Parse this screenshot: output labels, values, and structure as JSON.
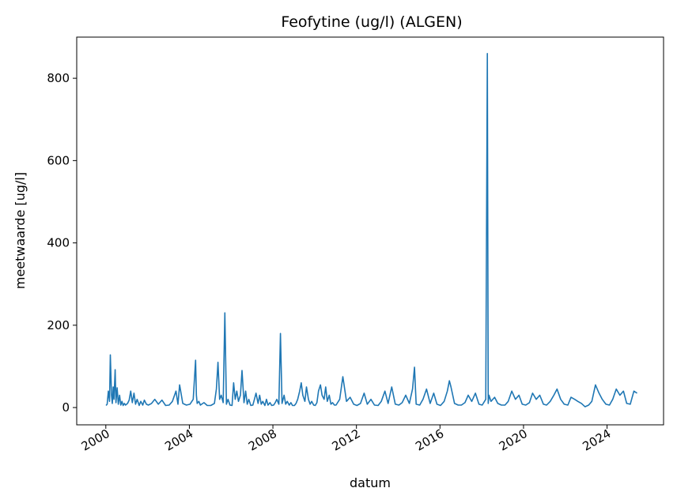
{
  "chart_data": {
    "type": "line",
    "title": "Feofytine (ug/l) (ALGEN)",
    "xlabel": "datum",
    "ylabel": "meetwaarde [ug/l]",
    "xlim": [
      "1998-08-10",
      "2026-09-15"
    ],
    "ylim": [
      -42,
      900
    ],
    "x_ticks": [
      "2000",
      "2004",
      "2008",
      "2012",
      "2016",
      "2020",
      "2024"
    ],
    "y_ticks": [
      0,
      200,
      400,
      600,
      800
    ],
    "grid": false,
    "legend": "none",
    "colors": {
      "line": "#1f77b4",
      "axes": "#000000",
      "background": "#ffffff"
    },
    "series": [
      {
        "x": [
          "2000-01-05",
          "2000-01-25",
          "2000-02-14",
          "2000-03-06",
          "2000-03-20",
          "2000-04-10",
          "2000-04-24",
          "2000-05-08",
          "2000-05-22",
          "2000-06-12",
          "2000-06-26",
          "2000-07-17",
          "2000-08-07",
          "2000-08-28",
          "2000-09-18",
          "2000-10-09",
          "2000-10-30",
          "2000-11-20",
          "2000-12-11",
          "2001-01-15",
          "2001-02-12",
          "2001-03-12",
          "2001-04-09",
          "2001-05-07",
          "2001-06-04",
          "2001-07-02",
          "2001-08-06",
          "2001-09-03",
          "2001-10-08",
          "2001-11-05",
          "2001-12-10",
          "2002-01-14",
          "2002-03-11",
          "2002-05-06",
          "2002-07-08",
          "2002-09-09",
          "2002-11-11",
          "2003-01-13",
          "2003-03-10",
          "2003-05-12",
          "2003-06-16",
          "2003-07-14",
          "2003-09-08",
          "2003-11-10",
          "2004-01-12",
          "2004-03-08",
          "2004-04-19",
          "2004-05-03",
          "2004-05-17",
          "2004-06-14",
          "2004-07-12",
          "2004-09-13",
          "2004-11-08",
          "2005-01-10",
          "2005-03-14",
          "2005-04-18",
          "2005-05-16",
          "2005-06-13",
          "2005-07-11",
          "2005-08-15",
          "2005-09-12",
          "2005-10-10",
          "2005-11-07",
          "2005-12-12",
          "2006-01-16",
          "2006-02-13",
          "2006-03-13",
          "2006-04-10",
          "2006-05-08",
          "2006-06-12",
          "2006-07-10",
          "2006-08-14",
          "2006-09-11",
          "2006-10-09",
          "2006-11-06",
          "2006-12-11",
          "2007-01-15",
          "2007-02-12",
          "2007-03-12",
          "2007-04-16",
          "2007-05-14",
          "2007-06-11",
          "2007-07-09",
          "2007-08-13",
          "2007-09-10",
          "2007-10-08",
          "2007-11-12",
          "2007-12-10",
          "2008-01-14",
          "2008-02-11",
          "2008-03-10",
          "2008-04-14",
          "2008-05-12",
          "2008-06-09",
          "2008-07-14",
          "2008-08-11",
          "2008-09-08",
          "2008-10-13",
          "2008-11-10",
          "2008-12-08",
          "2009-01-12",
          "2009-02-09",
          "2009-03-09",
          "2009-04-13",
          "2009-05-11",
          "2009-06-08",
          "2009-07-13",
          "2009-08-10",
          "2009-09-14",
          "2009-10-12",
          "2009-11-09",
          "2009-12-14",
          "2010-01-11",
          "2010-02-08",
          "2010-03-08",
          "2010-04-12",
          "2010-05-10",
          "2010-06-14",
          "2010-07-12",
          "2010-08-09",
          "2010-09-13",
          "2010-10-11",
          "2010-11-08",
          "2010-12-13",
          "2011-01-10",
          "2011-03-14",
          "2011-05-09",
          "2011-07-11",
          "2011-09-12",
          "2011-11-14",
          "2012-01-09",
          "2012-03-12",
          "2012-05-14",
          "2012-07-09",
          "2012-09-10",
          "2012-11-12",
          "2013-01-14",
          "2013-03-11",
          "2013-05-13",
          "2013-07-08",
          "2013-09-09",
          "2013-11-11",
          "2014-01-13",
          "2014-03-10",
          "2014-05-12",
          "2014-07-14",
          "2014-09-08",
          "2014-10-13",
          "2014-11-10",
          "2015-01-12",
          "2015-03-09",
          "2015-05-11",
          "2015-07-13",
          "2015-09-14",
          "2015-11-09",
          "2016-01-11",
          "2016-03-14",
          "2016-05-09",
          "2016-06-13",
          "2016-07-11",
          "2016-09-12",
          "2016-11-14",
          "2017-01-09",
          "2017-03-13",
          "2017-05-08",
          "2017-07-10",
          "2017-09-11",
          "2017-11-13",
          "2018-01-08",
          "2018-03-12",
          "2018-04-09",
          "2018-04-23",
          "2018-05-07",
          "2018-06-11",
          "2018-08-13",
          "2018-10-08",
          "2018-12-10",
          "2019-02-11",
          "2019-04-08",
          "2019-06-10",
          "2019-08-12",
          "2019-10-14",
          "2019-12-09",
          "2020-02-10",
          "2020-04-13",
          "2020-06-08",
          "2020-08-10",
          "2020-10-12",
          "2020-12-14",
          "2021-02-08",
          "2021-04-12",
          "2021-06-14",
          "2021-08-09",
          "2021-10-11",
          "2021-12-13",
          "2022-02-14",
          "2022-04-11",
          "2022-06-13",
          "2022-08-08",
          "2022-10-10",
          "2022-12-12",
          "2023-02-13",
          "2023-04-10",
          "2023-06-12",
          "2023-08-14",
          "2023-10-09",
          "2023-12-11",
          "2024-02-12",
          "2024-04-08",
          "2024-06-10",
          "2024-08-12",
          "2024-10-14",
          "2024-12-09",
          "2025-02-10",
          "2025-04-14",
          "2025-06-09"
        ],
        "y": [
          5,
          8,
          40,
          15,
          128,
          30,
          10,
          50,
          20,
          92,
          12,
          48,
          8,
          30,
          6,
          15,
          5,
          10,
          6,
          10,
          18,
          40,
          12,
          35,
          8,
          20,
          5,
          15,
          6,
          18,
          8,
          6,
          10,
          20,
          8,
          18,
          5,
          6,
          15,
          40,
          8,
          55,
          10,
          6,
          8,
          20,
          115,
          30,
          10,
          15,
          6,
          12,
          5,
          5,
          10,
          45,
          110,
          20,
          30,
          12,
          230,
          8,
          20,
          6,
          5,
          60,
          20,
          40,
          15,
          30,
          90,
          12,
          40,
          8,
          20,
          5,
          6,
          20,
          35,
          10,
          30,
          8,
          15,
          5,
          20,
          6,
          12,
          5,
          6,
          12,
          20,
          8,
          180,
          10,
          30,
          8,
          15,
          6,
          12,
          5,
          5,
          10,
          20,
          40,
          60,
          30,
          15,
          50,
          20,
          8,
          15,
          6,
          5,
          12,
          40,
          55,
          30,
          20,
          50,
          15,
          30,
          8,
          12,
          6,
          6,
          20,
          75,
          15,
          25,
          8,
          5,
          10,
          35,
          8,
          20,
          6,
          5,
          15,
          40,
          10,
          50,
          8,
          6,
          12,
          30,
          10,
          45,
          98,
          8,
          6,
          20,
          45,
          10,
          35,
          8,
          5,
          15,
          40,
          65,
          50,
          10,
          6,
          6,
          12,
          30,
          15,
          35,
          8,
          6,
          20,
          860,
          10,
          30,
          15,
          25,
          10,
          6,
          6,
          15,
          40,
          20,
          30,
          8,
          6,
          12,
          35,
          20,
          30,
          8,
          6,
          15,
          30,
          45,
          20,
          8,
          6,
          25,
          20,
          15,
          10,
          2,
          6,
          15,
          55,
          35,
          20,
          8,
          6,
          20,
          45,
          30,
          40,
          10,
          8,
          40,
          35
        ]
      }
    ]
  }
}
